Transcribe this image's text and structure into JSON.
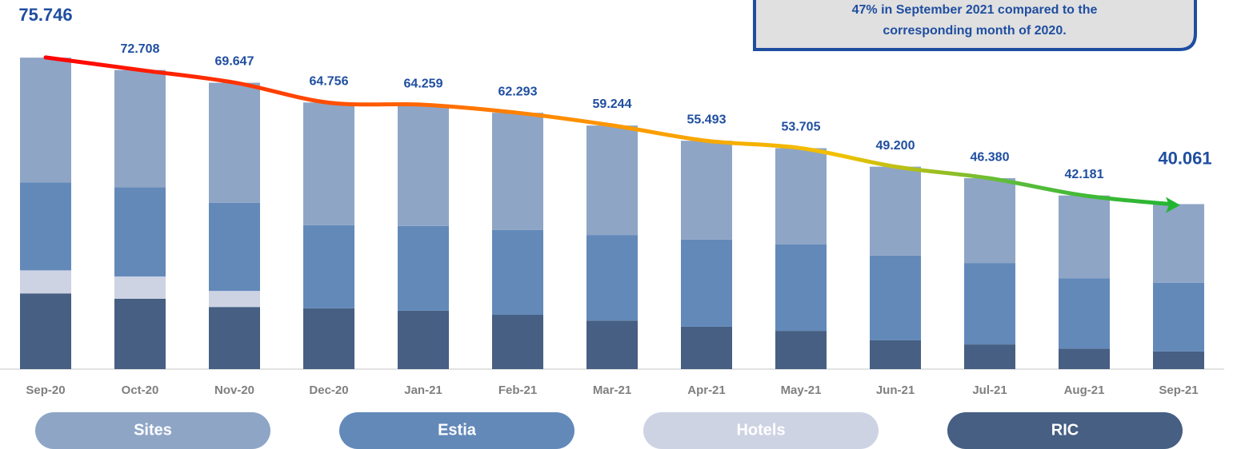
{
  "chart_data": {
    "type": "bar",
    "stacked": true,
    "categories": [
      "Sep-20",
      "Oct-20",
      "Nov-20",
      "Dec-20",
      "Jan-21",
      "Feb-21",
      "Mar-21",
      "Apr-21",
      "May-21",
      "Jun-21",
      "Jul-21",
      "Aug-21",
      "Sep-21"
    ],
    "series": [
      {
        "name": "Sites",
        "color": "#8ea5c6",
        "values": [
          30.3,
          28.5,
          29.2,
          29.8,
          29.5,
          28.5,
          26.6,
          24.0,
          23.4,
          21.6,
          20.6,
          20.1,
          19.1
        ]
      },
      {
        "name": "Estia",
        "color": "#6389b9",
        "values": [
          21.4,
          21.7,
          21.4,
          20.2,
          20.6,
          20.6,
          20.8,
          21.2,
          21.0,
          20.6,
          19.8,
          17.1,
          16.7
        ]
      },
      {
        "name": "Hotels",
        "color": "#cdd3e3",
        "values": [
          5.6,
          5.4,
          3.9,
          0,
          0,
          0,
          0,
          0,
          0,
          0,
          0,
          0,
          0
        ]
      },
      {
        "name": "RIC",
        "color": "#465f83",
        "values": [
          18.4,
          17.1,
          15.1,
          14.8,
          14.2,
          13.2,
          11.8,
          10.3,
          9.3,
          7.0,
          6.0,
          5.0,
          4.3
        ]
      }
    ],
    "totals": {
      "values": [
        75.746,
        72.708,
        69.647,
        64.756,
        64.259,
        62.293,
        59.244,
        55.493,
        53.705,
        49.2,
        46.38,
        42.181,
        40.061
      ],
      "value_labels": [
        "75.746",
        "72.708",
        "69.647",
        "64.756",
        "64.259",
        "62.293",
        "59.244",
        "55.493",
        "53.705",
        "49.200",
        "46.380",
        "42.181",
        "40.061"
      ]
    },
    "annotation": [
      "47% in September 2021 compared to the",
      "corresponding month of 2020."
    ],
    "ylim": [
      0,
      80
    ]
  }
}
